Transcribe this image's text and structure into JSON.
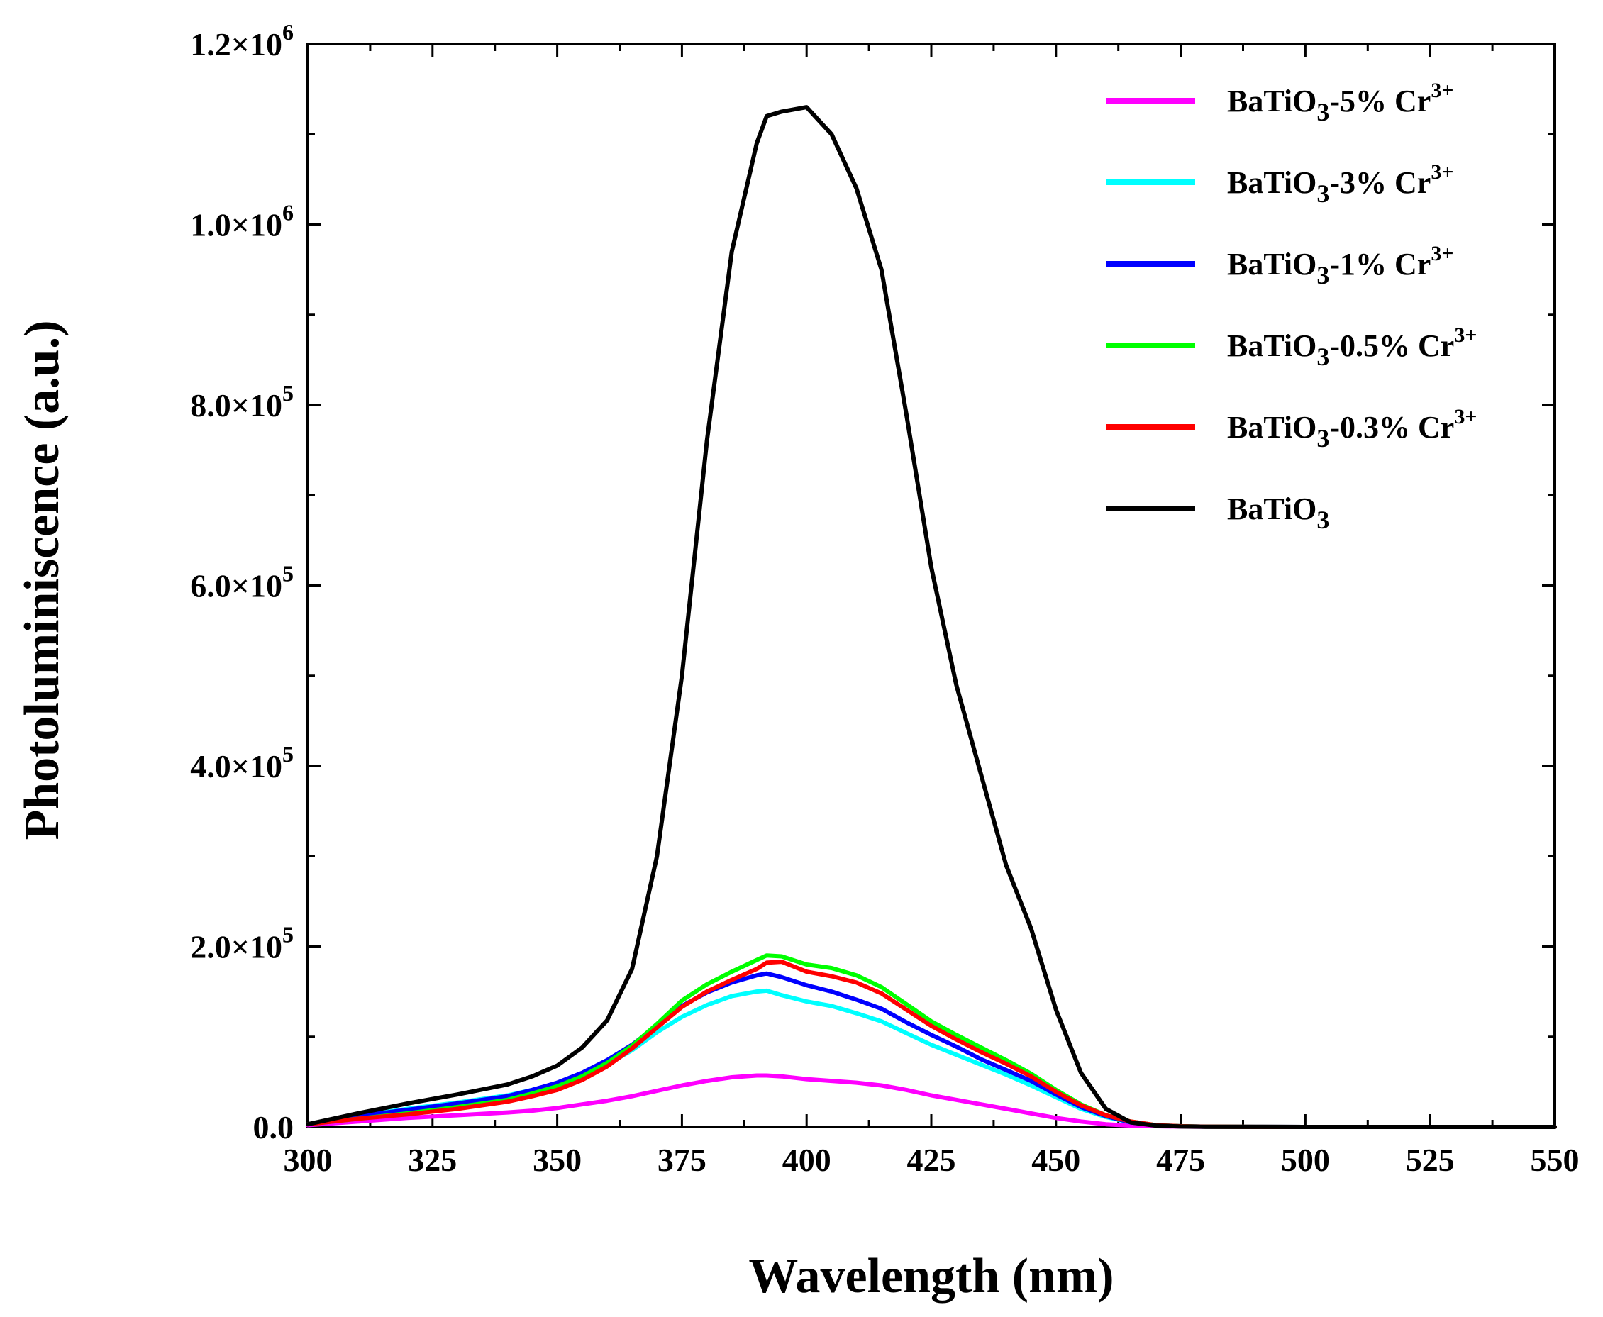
{
  "chart_data": {
    "type": "line",
    "title": "",
    "xlabel": "Wavelength (nm)",
    "ylabel": "Photoluminiscence (a.u.)",
    "xlim": [
      300,
      550
    ],
    "ylim": [
      0,
      1200000
    ],
    "x_ticks": [
      "300",
      "325",
      "350",
      "375",
      "400",
      "425",
      "450",
      "475",
      "500",
      "525",
      "550"
    ],
    "y_ticks": [
      {
        "mantissa": "0.0",
        "exp": ""
      },
      {
        "mantissa": "2.0×10",
        "exp": "5"
      },
      {
        "mantissa": "4.0×10",
        "exp": "5"
      },
      {
        "mantissa": "6.0×10",
        "exp": "5"
      },
      {
        "mantissa": "8.0×10",
        "exp": "5"
      },
      {
        "mantissa": "1.0×10",
        "exp": "6"
      },
      {
        "mantissa": "1.2×10",
        "exp": "6"
      }
    ],
    "grid": false,
    "legend_position": "top-right",
    "x": [
      300,
      310,
      320,
      330,
      340,
      345,
      350,
      355,
      360,
      365,
      370,
      375,
      380,
      385,
      390,
      392,
      395,
      400,
      405,
      410,
      415,
      420,
      425,
      430,
      435,
      440,
      445,
      450,
      455,
      460,
      465,
      470,
      475,
      480,
      490,
      500,
      525,
      550
    ],
    "series": [
      {
        "name": "BaTiO",
        "sub": "3",
        "suffix": "-5% Cr",
        "sup": "3+",
        "color": "#ff00ff",
        "values": [
          2000,
          6000,
          10000,
          13000,
          16000,
          18000,
          21000,
          25000,
          29000,
          34000,
          40000,
          46000,
          51000,
          55000,
          57000,
          57000,
          56000,
          53000,
          51000,
          49000,
          46000,
          41000,
          35000,
          30000,
          25000,
          20000,
          15000,
          10000,
          6000,
          3000,
          1500,
          800,
          400,
          200,
          100,
          0,
          0,
          0
        ]
      },
      {
        "name": "BaTiO",
        "sub": "3",
        "suffix": "-3% Cr",
        "sup": "3+",
        "color": "#00ffff",
        "values": [
          3000,
          12000,
          20000,
          27000,
          35000,
          41000,
          48000,
          57000,
          69000,
          85000,
          105000,
          122000,
          135000,
          145000,
          150000,
          151000,
          146000,
          139000,
          134000,
          126000,
          117000,
          104000,
          91000,
          80000,
          69000,
          58000,
          46000,
          33000,
          20000,
          11000,
          5000,
          2000,
          800,
          300,
          100,
          0,
          0,
          0
        ]
      },
      {
        "name": "BaTiO",
        "sub": "3",
        "suffix": "-1% Cr",
        "sup": "3+",
        "color": "#0000ff",
        "values": [
          3000,
          12000,
          19000,
          26000,
          34000,
          41000,
          49000,
          60000,
          74000,
          91000,
          112000,
          134000,
          149000,
          160000,
          168000,
          170000,
          166000,
          157000,
          150000,
          141000,
          131000,
          116000,
          102000,
          89000,
          75000,
          63000,
          51000,
          36000,
          22000,
          12000,
          5000,
          2000,
          800,
          300,
          100,
          0,
          0,
          0
        ]
      },
      {
        "name": "BaTiO",
        "sub": "3",
        "suffix": "-0.5% Cr",
        "sup": "3+",
        "color": "#00ff00",
        "values": [
          3000,
          9000,
          15000,
          22000,
          30000,
          37000,
          45000,
          56000,
          71000,
          90000,
          114000,
          140000,
          158000,
          172000,
          185000,
          190000,
          189000,
          180000,
          176000,
          168000,
          155000,
          136000,
          117000,
          102000,
          88000,
          74000,
          59000,
          41000,
          25000,
          13000,
          6000,
          2000,
          800,
          300,
          100,
          0,
          0,
          0
        ]
      },
      {
        "name": "BaTiO",
        "sub": "3",
        "suffix": "-0.3% Cr",
        "sup": "3+",
        "color": "#ff0000",
        "values": [
          3000,
          9000,
          14000,
          20000,
          28000,
          34000,
          41000,
          52000,
          67000,
          87000,
          110000,
          133000,
          150000,
          163000,
          175000,
          182000,
          183000,
          172000,
          167000,
          160000,
          148000,
          130000,
          112000,
          97000,
          83000,
          70000,
          56000,
          39000,
          24000,
          13000,
          6000,
          2000,
          800,
          300,
          100,
          0,
          0,
          0
        ]
      },
      {
        "name": "BaTiO",
        "sub": "3",
        "suffix": "",
        "sup": "",
        "color": "#000000",
        "values": [
          3000,
          15000,
          26000,
          36000,
          47000,
          56000,
          68000,
          88000,
          118000,
          175000,
          300000,
          500000,
          760000,
          970000,
          1090000,
          1120000,
          1125000,
          1130000,
          1100000,
          1040000,
          950000,
          790000,
          620000,
          490000,
          390000,
          290000,
          220000,
          130000,
          60000,
          20000,
          5000,
          1500,
          500,
          200,
          100,
          0,
          0,
          0
        ]
      }
    ]
  }
}
